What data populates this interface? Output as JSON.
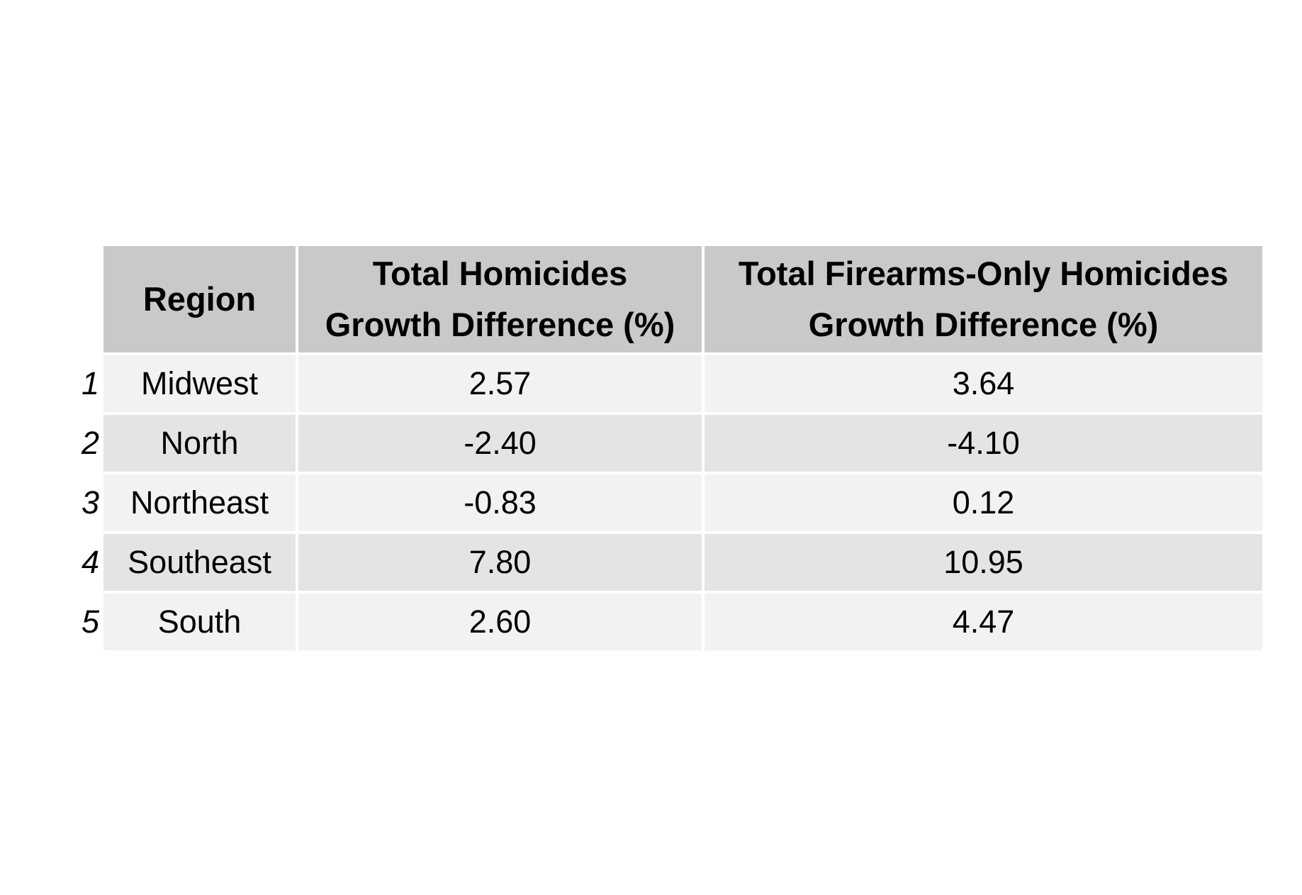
{
  "chart_data": {
    "type": "table",
    "columns": [
      "Region",
      "Total Homicides Growth Difference (%)",
      "Total Firearms-Only Homicides Growth Difference (%)"
    ],
    "header_lines": [
      [
        "Region"
      ],
      [
        "Total Homicides",
        "Growth Difference (%)"
      ],
      [
        "Total Firearms-Only Homicides",
        "Growth Difference (%)"
      ]
    ],
    "rows": [
      {
        "index": "1",
        "region": "Midwest",
        "total": "2.57",
        "firearms": "3.64"
      },
      {
        "index": "2",
        "region": "North",
        "total": "-2.40",
        "firearms": "-4.10"
      },
      {
        "index": "3",
        "region": "Northeast",
        "total": "-0.83",
        "firearms": "0.12"
      },
      {
        "index": "4",
        "region": "Southeast",
        "total": "7.80",
        "firearms": "10.95"
      },
      {
        "index": "5",
        "region": "South",
        "total": "2.60",
        "firearms": "4.47"
      }
    ],
    "colors": {
      "header_bg": "#c9c9c9",
      "row_light": "#f2f2f2",
      "row_dark": "#e4e4e4"
    }
  }
}
